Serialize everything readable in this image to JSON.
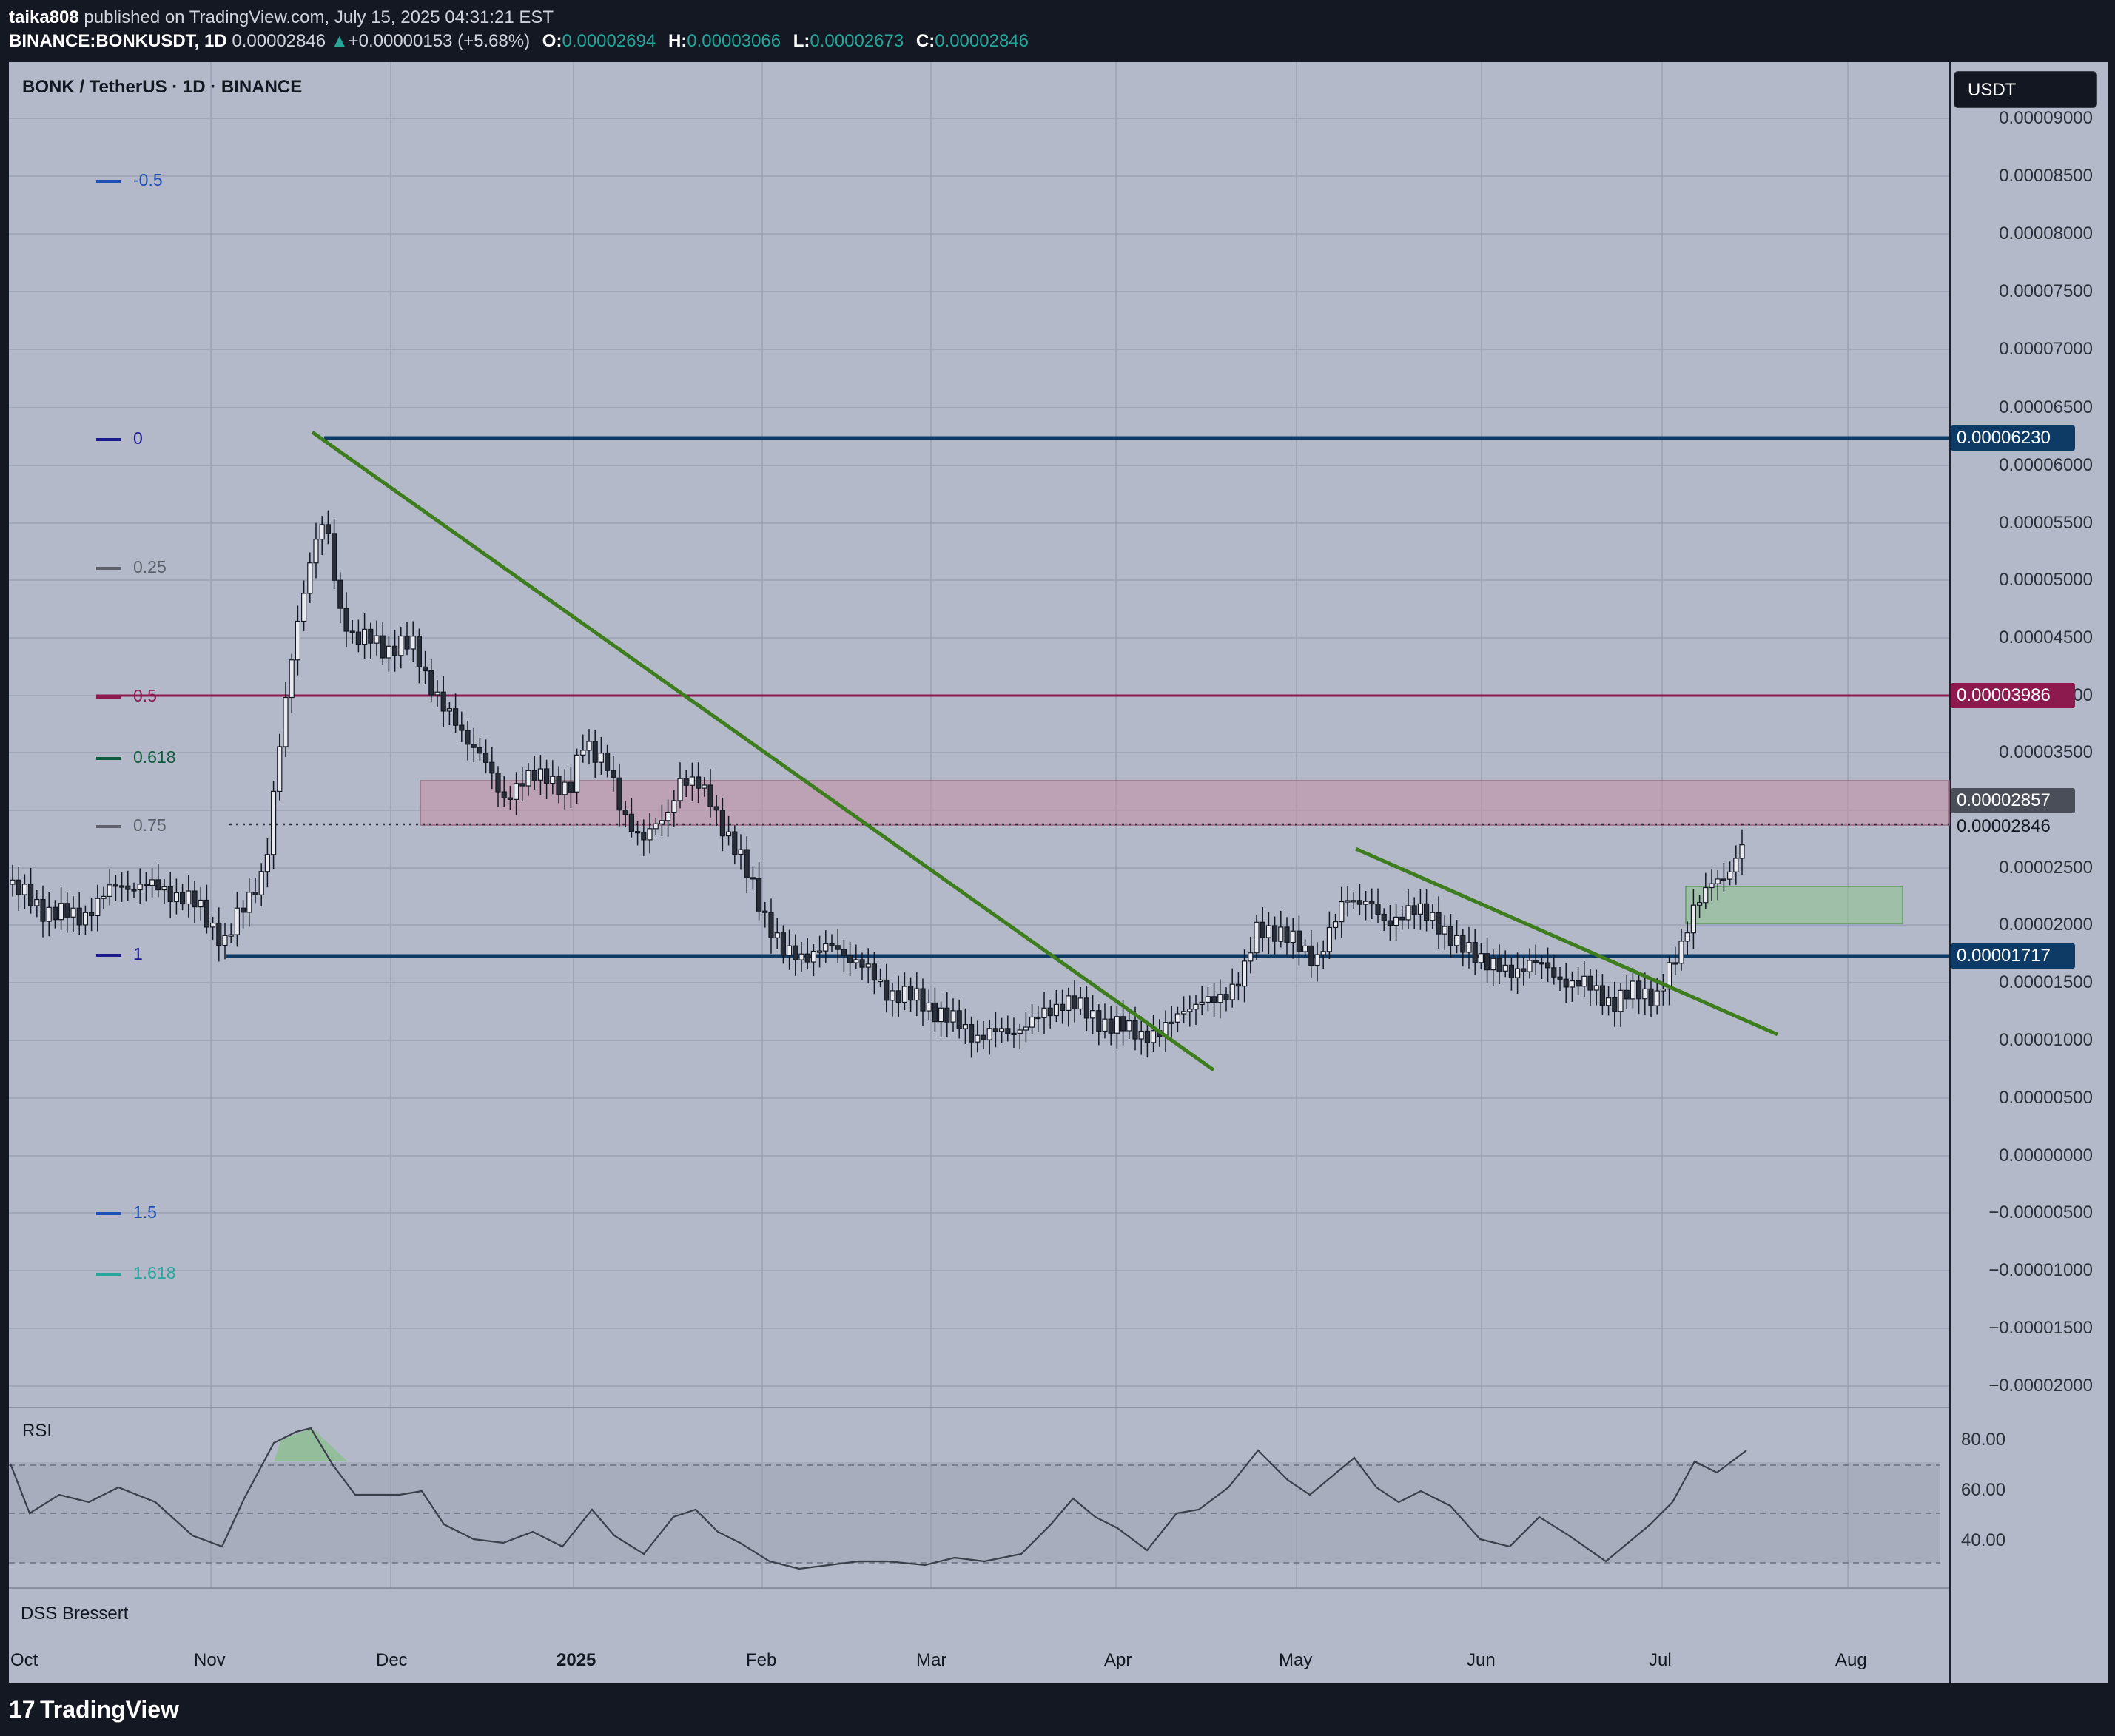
{
  "header": {
    "line1_user": "taika808",
    "line1_rest": " published on TradingView.com, July 15, 2025 04:31:21 EST",
    "symbol": "BINANCE:BONKUSDT, 1D",
    "last": "0.00002846",
    "change_arrow": "▲",
    "change": "+0.00000153 (+5.68%)",
    "o_label": "O:",
    "o_value": "0.00002694",
    "h_label": "H:",
    "h_value": "0.00003066",
    "l_label": "L:",
    "l_value": "0.00002673",
    "c_label": "C:",
    "c_value": "0.00002846"
  },
  "chart": {
    "title": "BONK / TetherUS · 1D · BINANCE",
    "currency_button": "USDT",
    "price_ticks": [
      "0.00009000",
      "0.00008500",
      "0.00008000",
      "0.00007500",
      "0.00007000",
      "0.00006500",
      "0.00006000",
      "0.00005500",
      "0.00005000",
      "0.00004500",
      "0.00004000",
      "0.00003500",
      "0.00002500",
      "0.00002000",
      "0.00001500",
      "0.00001000",
      "0.00000500",
      "0.00000000",
      "−0.00000500",
      "−0.00001000",
      "−0.00001500",
      "−0.00002000"
    ],
    "price_labels": {
      "top_line": "0.00006230",
      "fib_05_line": "0.00003986",
      "zone_top": "0.00002857",
      "last_price": "0.00002846",
      "bottom_line": "0.00001717"
    },
    "fib_levels": [
      {
        "label": "-0.5",
        "color": "#1e50b4"
      },
      {
        "label": "0",
        "color": "#1a1a8c"
      },
      {
        "label": "0.25",
        "color": "#5d606b"
      },
      {
        "label": "0.5",
        "color": "#8c1a4f"
      },
      {
        "label": "0.618",
        "color": "#0f5a3a"
      },
      {
        "label": "0.75",
        "color": "#5d606b"
      },
      {
        "label": "1",
        "color": "#1a1a8c"
      },
      {
        "label": "1.5",
        "color": "#1e50b4"
      },
      {
        "label": "1.618",
        "color": "#26a69a"
      }
    ],
    "x_labels": [
      "Oct",
      "Nov",
      "Dec",
      "2025",
      "Feb",
      "Mar",
      "Apr",
      "May",
      "Jun",
      "Jul",
      "Aug"
    ]
  },
  "rsi": {
    "title": "RSI",
    "ticks": [
      "80.00",
      "60.00",
      "40.00"
    ]
  },
  "dss": {
    "title": "DSS Bressert"
  },
  "brand": {
    "logo": "17",
    "name": "TradingView"
  },
  "colors": {
    "chart_bg": "#b3b9c8",
    "level_line": "#0d3b66",
    "fib_05": "#8c1a4f",
    "trendline": "#3e7d1e",
    "resistance_zone": "#c48fa6",
    "support_zone": "#8fc48f"
  }
}
